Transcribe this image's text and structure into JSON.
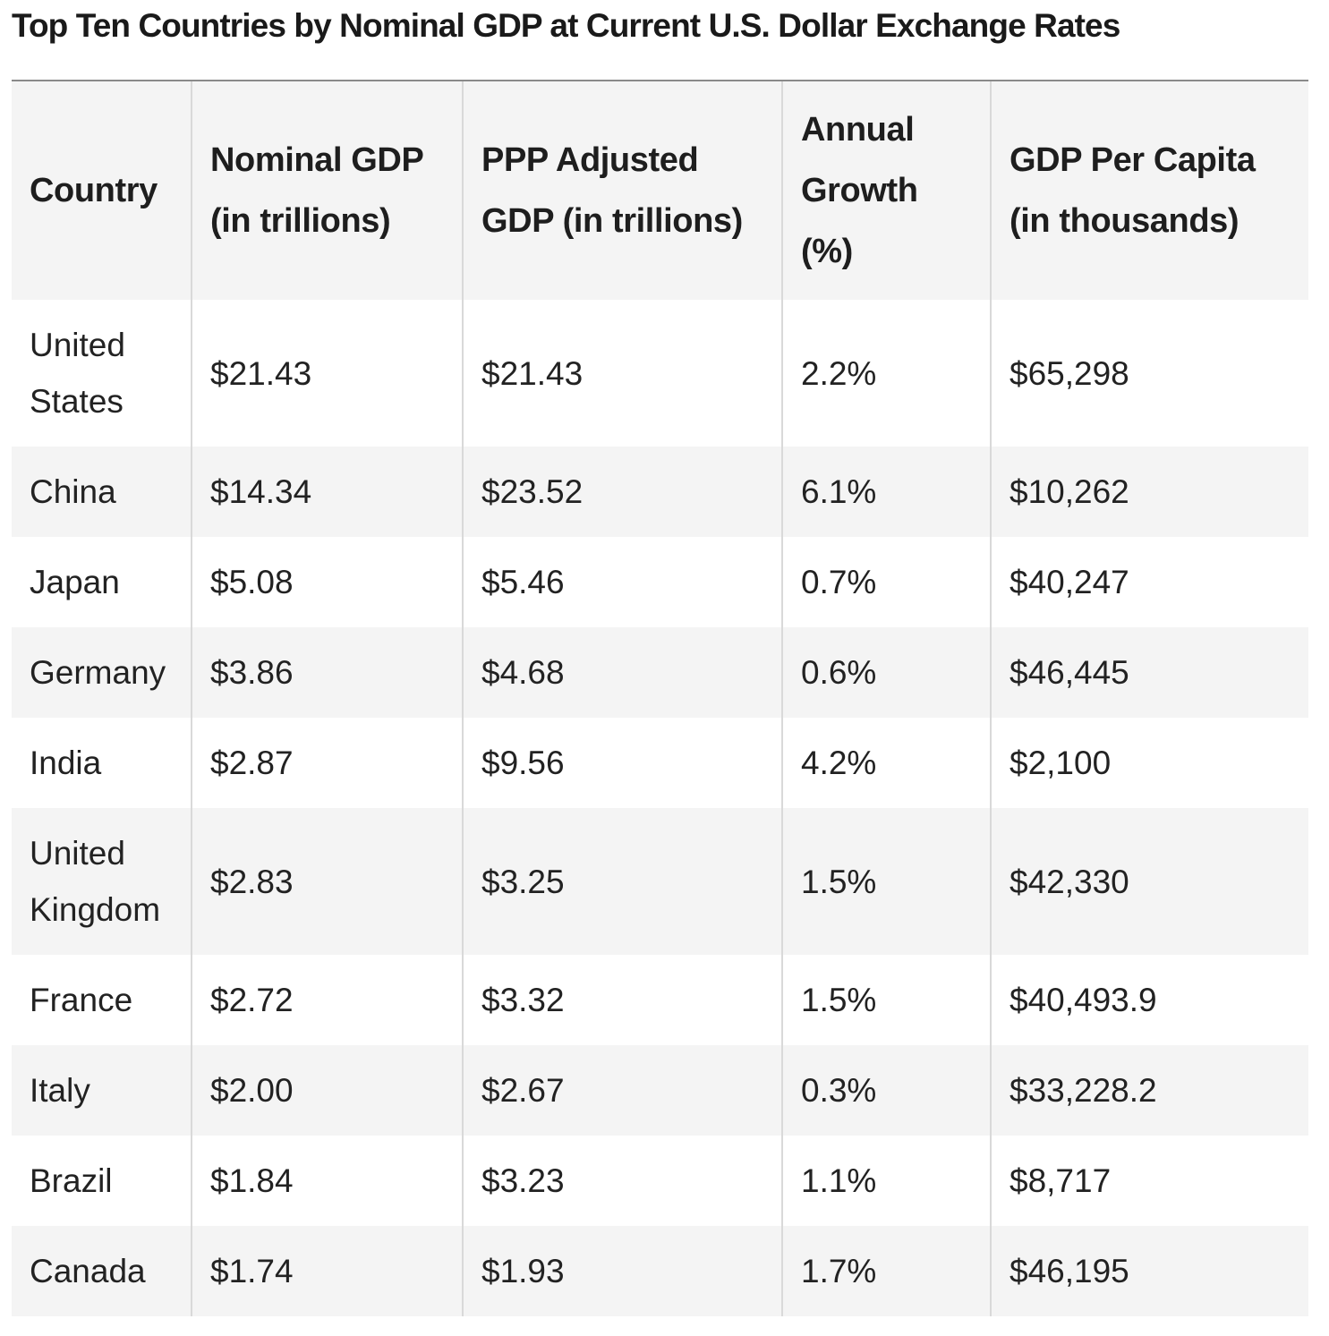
{
  "caption": "Top Ten Countries by Nominal GDP at Current U.S. Dollar Exchange Rates",
  "table": {
    "columns": [
      "Country",
      "Nominal GDP (in trillions)",
      "PPP Adjusted GDP (in trillions)",
      "Annual Growth (%)",
      "GDP Per Capita (in thousands)"
    ],
    "rows": [
      [
        "United States",
        "$21.43",
        "$21.43",
        "2.2%",
        "$65,298"
      ],
      [
        "China",
        "$14.34",
        "$23.52",
        "6.1%",
        "$10,262"
      ],
      [
        "Japan",
        "$5.08",
        "$5.46",
        "0.7%",
        "$40,247"
      ],
      [
        "Germany",
        "$3.86",
        "$4.68",
        "0.6%",
        "$46,445"
      ],
      [
        "India",
        "$2.87",
        "$9.56",
        "4.2%",
        "$2,100"
      ],
      [
        "United Kingdom",
        "$2.83",
        "$3.25",
        "1.5%",
        "$42,330"
      ],
      [
        "France",
        "$2.72",
        "$3.32",
        "1.5%",
        "$40,493.9"
      ],
      [
        "Italy",
        "$2.00",
        "$2.67",
        "0.3%",
        "$33,228.2"
      ],
      [
        "Brazil",
        "$1.84",
        "$3.23",
        "1.1%",
        "$8,717"
      ],
      [
        "Canada",
        "$1.74",
        "$1.93",
        "1.7%",
        "$46,195"
      ]
    ]
  }
}
